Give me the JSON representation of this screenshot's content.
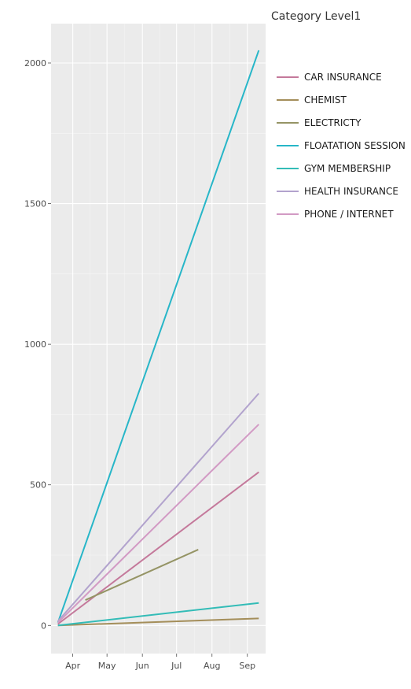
{
  "chart_data": {
    "type": "line",
    "title": "",
    "xlabel": "",
    "ylabel": "",
    "x_ticks": [
      "Apr",
      "May",
      "Jun",
      "Jul",
      "Aug",
      "Sep"
    ],
    "x_tick_days": [
      91,
      121,
      152,
      182,
      213,
      244
    ],
    "y_ticks": [
      0,
      500,
      1000,
      1500,
      2000
    ],
    "xlim": [
      72,
      260
    ],
    "ylim": [
      -100,
      2140
    ],
    "grid": true,
    "legend": {
      "title": "Category Level1",
      "position": "right"
    },
    "series": [
      {
        "name": "CAR INSURANCE",
        "color": "#c4799b",
        "x": [
          78,
          254
        ],
        "y": [
          5,
          545
        ]
      },
      {
        "name": "CHEMIST",
        "color": "#a48e5a",
        "x": [
          78,
          254
        ],
        "y": [
          0,
          25
        ]
      },
      {
        "name": "ELECTRICTY",
        "color": "#959465",
        "x": [
          102,
          201
        ],
        "y": [
          90,
          270
        ]
      },
      {
        "name": "FLOATATION SESSION",
        "color": "#27b6c8",
        "x": [
          78,
          254
        ],
        "y": [
          10,
          2045
        ]
      },
      {
        "name": "GYM MEMBERSHIP",
        "color": "#33bcb7",
        "x": [
          78,
          254
        ],
        "y": [
          0,
          80
        ]
      },
      {
        "name": "HEALTH INSURANCE",
        "color": "#b2a3cd",
        "x": [
          78,
          254
        ],
        "y": [
          15,
          825
        ]
      },
      {
        "name": "PHONE / INTERNET",
        "color": "#d29ac4",
        "x": [
          78,
          254
        ],
        "y": [
          10,
          715
        ]
      }
    ]
  }
}
